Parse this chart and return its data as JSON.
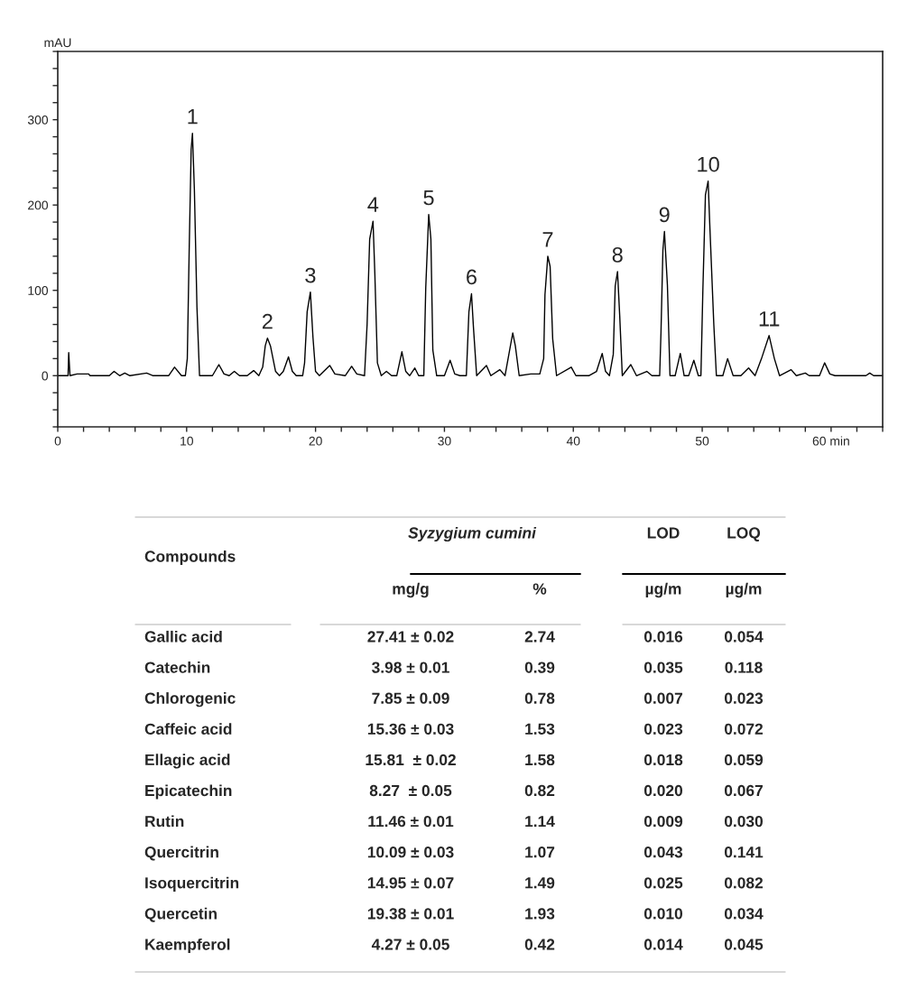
{
  "chart_data": {
    "type": "line",
    "ylabel": "mAU",
    "xlim": [
      0,
      64
    ],
    "ylim": [
      -60,
      380
    ],
    "xticks": [
      0,
      {
        "value": 2,
        "label": null
      },
      {
        "value": 4,
        "label": null
      },
      {
        "value": 6,
        "label": null
      },
      {
        "value": 8,
        "label": null
      },
      10,
      {
        "value": 12,
        "label": null
      },
      {
        "value": 14,
        "label": null
      },
      {
        "value": 16,
        "label": null
      },
      {
        "value": 18,
        "label": null
      },
      20,
      {
        "value": 22,
        "label": null
      },
      {
        "value": 24,
        "label": null
      },
      {
        "value": 26,
        "label": null
      },
      {
        "value": 28,
        "label": null
      },
      30,
      {
        "value": 32,
        "label": null
      },
      {
        "value": 34,
        "label": null
      },
      {
        "value": 36,
        "label": null
      },
      {
        "value": 38,
        "label": null
      },
      40,
      {
        "value": 42,
        "label": null
      },
      {
        "value": 44,
        "label": null
      },
      {
        "value": 46,
        "label": null
      },
      {
        "value": 48,
        "label": null
      },
      50,
      {
        "value": 52,
        "label": null
      },
      {
        "value": 54,
        "label": null
      },
      {
        "value": 56,
        "label": null
      },
      {
        "value": 58,
        "label": null
      },
      {
        "value": 60,
        "label": "60 min"
      },
      {
        "value": 62,
        "label": null
      },
      {
        "value": 64,
        "label": null
      }
    ],
    "yticks": [
      {
        "value": -60,
        "label": null
      },
      {
        "value": -40,
        "label": null
      },
      {
        "value": -20,
        "label": null
      },
      0,
      {
        "value": 20,
        "label": null
      },
      {
        "value": 40,
        "label": null
      },
      {
        "value": 60,
        "label": null
      },
      {
        "value": 80,
        "label": null
      },
      100,
      {
        "value": 120,
        "label": null
      },
      {
        "value": 140,
        "label": null
      },
      {
        "value": 160,
        "label": null
      },
      {
        "value": 180,
        "label": null
      },
      200,
      {
        "value": 220,
        "label": null
      },
      {
        "value": 240,
        "label": null
      },
      {
        "value": 260,
        "label": null
      },
      {
        "value": 280,
        "label": null
      },
      300,
      {
        "value": 320,
        "label": null
      },
      {
        "value": 340,
        "label": null
      },
      {
        "value": 360,
        "label": null
      },
      {
        "value": 380,
        "label": null
      }
    ],
    "x": [
      0,
      0.8,
      0.85,
      0.95,
      1.5,
      2.4,
      2.5,
      4.0,
      4.37,
      4.8,
      5.2,
      5.6,
      6.9,
      7.4,
      8.6,
      9.06,
      9.6,
      9.9,
      10.05,
      10.2,
      10.35,
      10.45,
      10.6,
      10.8,
      11.0,
      12.0,
      12.5,
      12.9,
      13.3,
      13.7,
      14.1,
      14.7,
      15.2,
      15.6,
      15.9,
      16.1,
      16.27,
      16.5,
      16.9,
      17.2,
      17.5,
      17.9,
      18.2,
      18.5,
      19.0,
      19.15,
      19.35,
      19.6,
      19.8,
      20.0,
      20.3,
      21.1,
      21.5,
      22.3,
      22.8,
      23.2,
      23.8,
      24.0,
      24.2,
      24.46,
      24.6,
      24.8,
      25.1,
      25.5,
      25.9,
      26.3,
      26.7,
      27.0,
      27.3,
      27.7,
      28.0,
      28.4,
      28.55,
      28.78,
      28.95,
      29.1,
      29.4,
      30.0,
      30.44,
      30.8,
      31.2,
      31.7,
      31.9,
      32.1,
      32.25,
      32.5,
      33.26,
      33.6,
      34.3,
      34.7,
      35.0,
      35.3,
      35.5,
      35.8,
      36.7,
      37.4,
      37.7,
      37.8,
      38.02,
      38.2,
      38.4,
      38.7,
      39.84,
      40.2,
      41.2,
      41.8,
      42.24,
      42.5,
      42.8,
      43.1,
      43.25,
      43.43,
      43.6,
      43.8,
      44.46,
      44.9,
      45.7,
      46.1,
      46.7,
      46.8,
      46.95,
      47.07,
      47.3,
      47.5,
      47.9,
      48.3,
      48.6,
      48.95,
      49.35,
      49.7,
      49.9,
      50.05,
      50.25,
      50.46,
      50.6,
      50.9,
      51.1,
      51.6,
      51.97,
      52.4,
      53.0,
      53.6,
      54.1,
      54.6,
      55.19,
      55.6,
      56.0,
      56.9,
      57.3,
      58.0,
      58.3,
      59.1,
      59.5,
      59.9,
      60.3,
      62.7,
      63.0,
      63.3,
      64
    ],
    "series": [
      {
        "color": "#000000",
        "values": [
          0,
          0,
          27,
          0,
          2,
          2,
          0,
          0,
          5,
          0,
          3,
          0,
          3,
          0,
          0,
          10,
          0,
          0,
          20,
          150,
          265,
          284,
          218,
          80,
          0,
          0,
          13,
          2,
          0,
          5,
          0,
          0,
          6,
          0,
          10,
          35,
          44,
          35,
          5,
          0,
          5,
          22,
          5,
          0,
          0,
          15,
          75,
          98,
          45,
          5,
          0,
          12,
          2,
          0,
          11,
          2,
          0,
          60,
          160,
          181,
          120,
          15,
          0,
          5,
          0,
          0,
          28,
          5,
          0,
          9,
          0,
          0,
          103,
          189,
          160,
          30,
          0,
          0,
          18,
          2,
          0,
          0,
          75,
          96,
          57,
          0,
          12,
          0,
          7,
          0,
          25,
          50,
          35,
          0,
          2,
          2,
          20,
          95,
          140,
          128,
          43,
          0,
          10,
          0,
          0,
          5,
          26,
          5,
          0,
          25,
          105,
          122,
          70,
          0,
          13,
          0,
          5,
          0,
          0,
          50,
          147,
          169,
          106,
          0,
          0,
          26,
          0,
          0,
          18,
          0,
          0,
          100,
          212,
          228,
          172,
          60,
          0,
          0,
          20,
          0,
          0,
          9,
          0,
          20,
          47,
          20,
          0,
          7,
          0,
          3,
          0,
          0,
          15,
          2,
          0,
          0,
          3,
          0,
          0
        ]
      }
    ],
    "annotations": [
      {
        "text": "1",
        "x": 10.45,
        "y": 284
      },
      {
        "text": "2",
        "x": 16.27,
        "y": 44
      },
      {
        "text": "3",
        "x": 19.6,
        "y": 98
      },
      {
        "text": "4",
        "x": 24.46,
        "y": 181
      },
      {
        "text": "5",
        "x": 28.78,
        "y": 189
      },
      {
        "text": "6",
        "x": 32.1,
        "y": 96
      },
      {
        "text": "7",
        "x": 38.02,
        "y": 140
      },
      {
        "text": "8",
        "x": 43.43,
        "y": 122
      },
      {
        "text": "9",
        "x": 47.07,
        "y": 169
      },
      {
        "text": "10",
        "x": 50.46,
        "y": 228
      },
      {
        "text": "11",
        "x": 55.19,
        "y": 47
      },
      "Compounds",
      "Syzygium cumini",
      "LOD",
      "LOQ",
      "mg/g",
      "%",
      "µg/m",
      "µg/m",
      "Gallic acid",
      "27.41 ± 0.02",
      "2.74",
      "0.016",
      "0.054",
      "Catechin",
      "3.98 ± 0.01",
      "0.39",
      "0.035",
      "0.118",
      "Chlorogenic",
      "7.85 ± 0.09",
      "0.78",
      "0.007",
      "0.023",
      "Caffeic acid",
      "15.36 ± 0.03",
      "1.53",
      "0.023",
      "0.072",
      "Ellagic acid",
      "15.81  ± 0.02",
      "1.58",
      "0.018",
      "0.059",
      "Epicatechin",
      "8.27  ± 0.05",
      "0.82",
      "0.020",
      "0.067",
      "Rutin",
      "11.46 ± 0.01",
      "1.14",
      "0.009",
      "0.030",
      "Quercitrin",
      "10.09 ± 0.03",
      "1.07",
      "0.043",
      "0.141",
      "Isoquercitrin",
      "14.95 ± 0.07",
      "1.49",
      "0.025",
      "0.082",
      "Quercetin",
      "19.38 ± 0.01",
      "1.93",
      "0.010",
      "0.034",
      "Kaempferol",
      "4.27 ± 0.05",
      "0.42",
      "0.014",
      "0.045"
    ]
  }
}
